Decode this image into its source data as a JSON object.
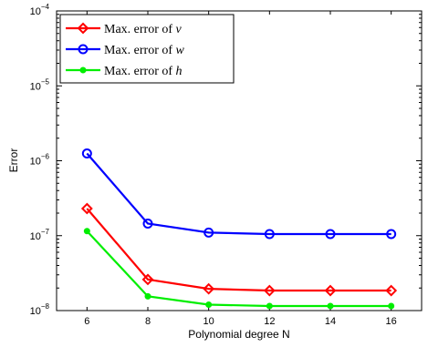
{
  "chart_data": {
    "type": "line",
    "xlabel": "Polynomial degree N",
    "ylabel": "Error",
    "xlim": [
      5,
      17
    ],
    "ylim": [
      1e-08,
      0.0001
    ],
    "yscale": "log",
    "xticks": [
      6,
      8,
      10,
      12,
      14,
      16
    ],
    "yticks": [
      {
        "value": 1e-08,
        "base": "10",
        "exp": "−8"
      },
      {
        "value": 1e-07,
        "base": "10",
        "exp": "−7"
      },
      {
        "value": 1e-06,
        "base": "10",
        "exp": "−6"
      },
      {
        "value": 1e-05,
        "base": "10",
        "exp": "−5"
      },
      {
        "value": 0.0001,
        "base": "10",
        "exp": "−4"
      }
    ],
    "grid": false,
    "legend_position": "top-left",
    "x": [
      6,
      8,
      10,
      12,
      14,
      16
    ],
    "series": [
      {
        "name_prefix": "Max.  error of ",
        "name_var": "v",
        "color": "#ff0000",
        "marker": "diamond",
        "values": [
          2.3e-07,
          2.6e-08,
          1.95e-08,
          1.85e-08,
          1.85e-08,
          1.85e-08
        ]
      },
      {
        "name_prefix": "Max.  error of ",
        "name_var": "w",
        "color": "#0000ff",
        "marker": "circle",
        "values": [
          1.25e-06,
          1.45e-07,
          1.1e-07,
          1.05e-07,
          1.05e-07,
          1.05e-07
        ]
      },
      {
        "name_prefix": "Max.  error of ",
        "name_var": "h",
        "color": "#00ee00",
        "marker": "dot",
        "values": [
          1.15e-07,
          1.55e-08,
          1.2e-08,
          1.15e-08,
          1.15e-08,
          1.15e-08
        ]
      }
    ]
  }
}
